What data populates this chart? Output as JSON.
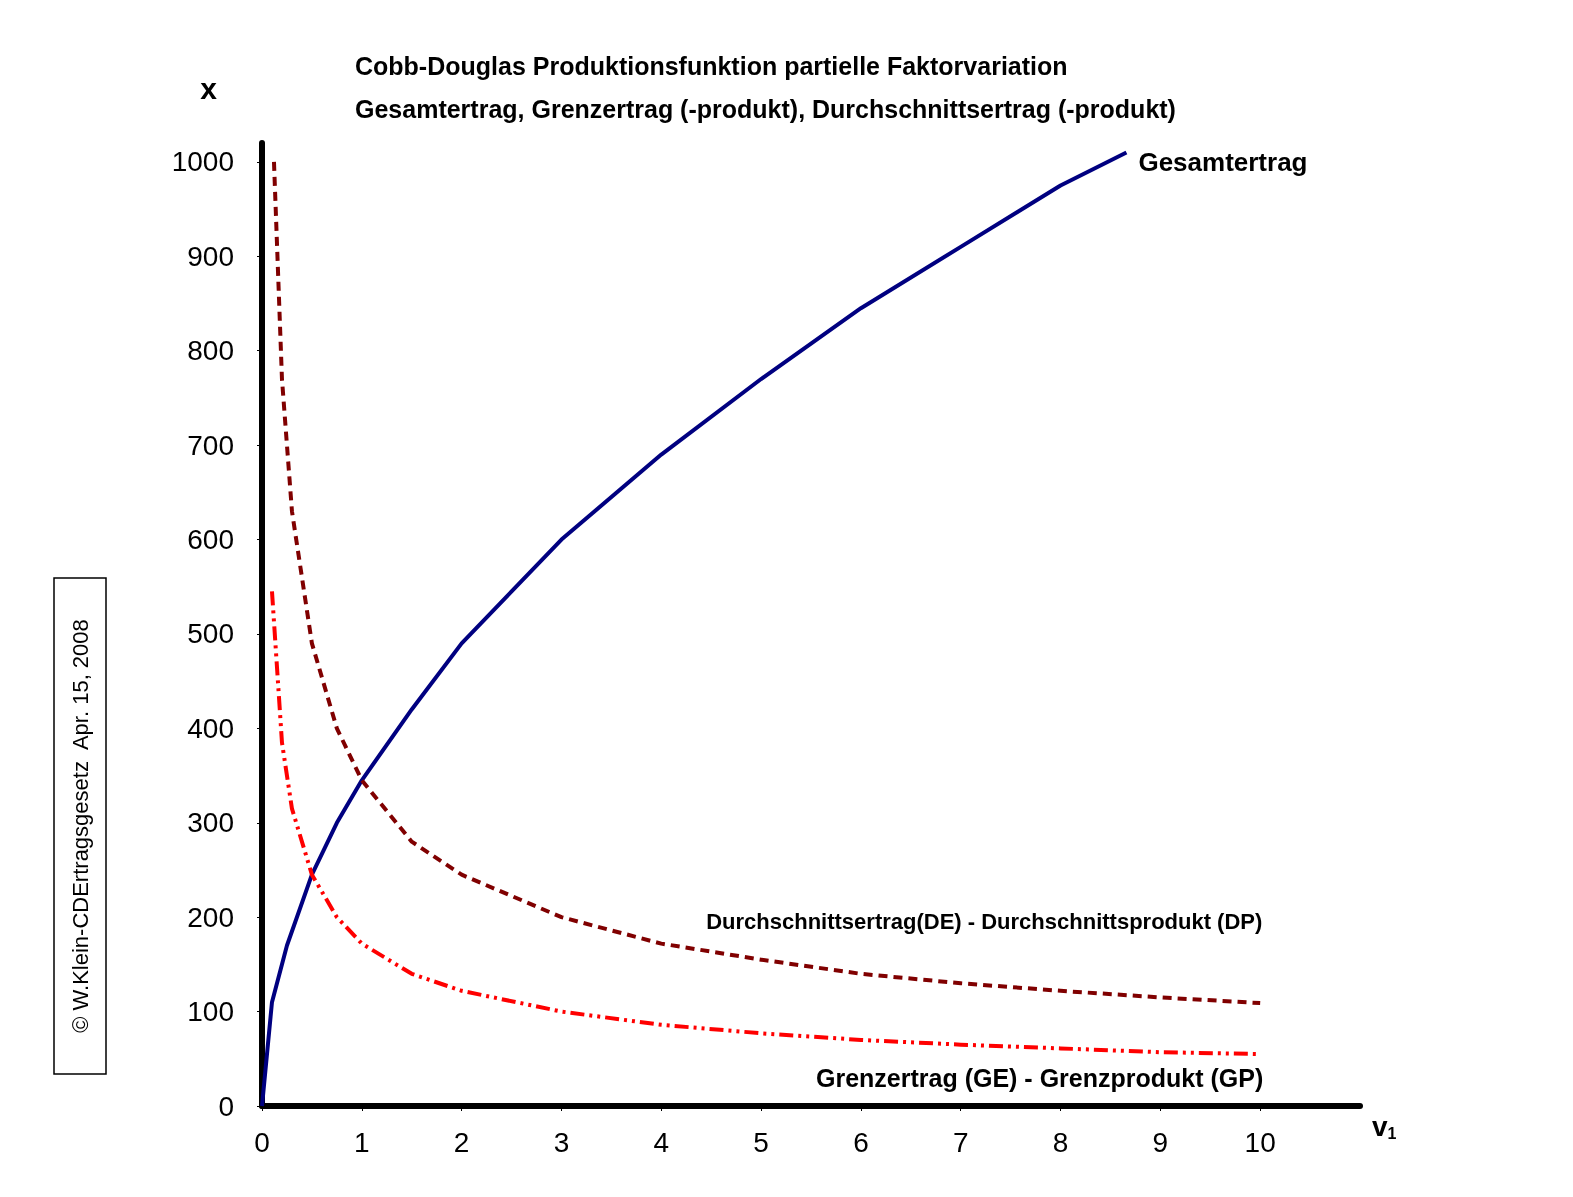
{
  "chart_data": {
    "type": "line",
    "title": "Cobb-Douglas Produktionsfunktion partielle Faktorvariation",
    "subtitle": "Gesamtertrag, Grenzertrag (-produkt), Durchschnittsertrag (-produkt)",
    "xlabel": "v$_{1}$",
    "ylabel": "x",
    "xlim": [
      0,
      11
    ],
    "xticks": [
      0,
      1,
      2,
      3,
      4,
      5,
      6,
      7,
      8,
      9,
      10
    ],
    "ylim": [
      0,
      1020
    ],
    "yticks": [
      0,
      100,
      200,
      300,
      400,
      500,
      600,
      700,
      800,
      900,
      1000
    ],
    "grid": false,
    "legend": false,
    "marker": "none",
    "annotations": [
      "© W.Klein-CDErtragsgesetz  Apr. 15, 2008"
    ],
    "series": [
      {
        "name": "Gesamtertrag",
        "color": "#000080",
        "line_style": "solid",
        "x": [
          0,
          0.1,
          0.25,
          0.5,
          0.75,
          1,
          1.5,
          2,
          3,
          4,
          5,
          6,
          7,
          8,
          8.66
        ],
        "values": [
          0,
          110,
          170,
          245,
          300,
          345,
          420,
          490,
          600,
          690,
          770,
          845,
          910,
          975,
          1010
        ]
      },
      {
        "name": "Durchschnittsertrag(DE) - Durchschnittsprodukt (DP)",
        "color": "#800000",
        "line_style": "dashed",
        "x": [
          0.12,
          0.2,
          0.3,
          0.5,
          0.75,
          1,
          1.5,
          2,
          3,
          4,
          5,
          6,
          7,
          8,
          9,
          10
        ],
        "values": [
          1000,
          770,
          630,
          490,
          400,
          345,
          280,
          245,
          200,
          172,
          155,
          140,
          130,
          122,
          115,
          109
        ]
      },
      {
        "name": "Grenzertrag (GE) - Grenzprodukt (GP)",
        "color": "#ff0000",
        "line_style": "dashed",
        "x": [
          0.1,
          0.2,
          0.3,
          0.5,
          0.75,
          1,
          1.5,
          2,
          3,
          4,
          5,
          6,
          7,
          8,
          9,
          10
        ],
        "values": [
          545,
          385,
          315,
          245,
          200,
          172,
          140,
          122,
          100,
          86,
          77,
          70,
          65,
          61,
          57,
          55
        ]
      }
    ]
  }
}
